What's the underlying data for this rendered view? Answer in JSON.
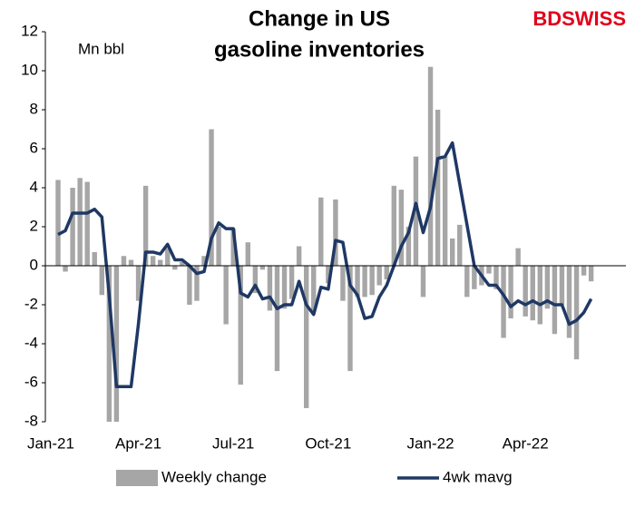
{
  "chart_data": {
    "type": "bar_line",
    "title": [
      "Change in US",
      "gasoline inventories"
    ],
    "unit_label": "Mn bbl",
    "logo": "BDSWISS",
    "categories": [
      "Jan-21",
      null,
      null,
      null,
      null,
      null,
      null,
      null,
      null,
      null,
      null,
      null,
      "Apr-21",
      null,
      null,
      null,
      null,
      null,
      null,
      null,
      null,
      null,
      null,
      null,
      null,
      "Jul-21",
      null,
      null,
      null,
      null,
      null,
      null,
      null,
      null,
      null,
      null,
      null,
      null,
      "Oct-21",
      null,
      null,
      null,
      null,
      null,
      null,
      null,
      null,
      null,
      null,
      null,
      null,
      null,
      "Jan-22",
      null,
      null,
      null,
      null,
      null,
      null,
      null,
      null,
      null,
      null,
      null,
      null,
      "Apr-22",
      null,
      null,
      null,
      null,
      null,
      null,
      null,
      null
    ],
    "series": [
      {
        "name": "Weekly change",
        "kind": "bar",
        "color": "#a6a6a6",
        "values": [
          4.4,
          -0.3,
          4.0,
          4.5,
          4.3,
          0.7,
          -1.5,
          -9.0,
          -9.0,
          0.5,
          0.3,
          -1.8,
          4.1,
          0.5,
          0.3,
          0.9,
          -0.2,
          0.2,
          -2.0,
          -1.8,
          0.5,
          7.0,
          2.0,
          -3.0,
          1.9,
          -6.1,
          1.2,
          -1.4,
          -0.2,
          -2.3,
          -5.4,
          -2.2,
          -1.7,
          1.0,
          -7.3,
          -2.3,
          3.5,
          -0.9,
          3.4,
          -1.8,
          -5.4,
          -1.6,
          -1.6,
          -1.5,
          -1.0,
          -0.7,
          4.1,
          3.9,
          2.0,
          5.6,
          -1.6,
          10.2,
          8.0,
          5.6,
          1.4,
          2.1,
          -1.6,
          -1.2,
          -1.0,
          -0.4,
          -1.2,
          -3.7,
          -2.7,
          0.9,
          -2.6,
          -2.8,
          -3.0,
          -2.2,
          -3.5,
          -2.0,
          -3.7,
          -4.8,
          -0.5,
          -0.8
        ]
      },
      {
        "name": "4wk mavg",
        "kind": "line",
        "color": "#1f3864",
        "values": [
          1.6,
          1.8,
          2.7,
          2.7,
          2.7,
          2.9,
          2.5,
          -1.5,
          -6.2,
          -6.2,
          -6.2,
          -3.0,
          0.7,
          0.7,
          0.6,
          1.1,
          0.3,
          0.3,
          0.0,
          -0.4,
          -0.3,
          1.4,
          2.2,
          1.9,
          1.9,
          -1.4,
          -1.6,
          -1.0,
          -1.7,
          -1.6,
          -2.2,
          -2.0,
          -2.0,
          -0.8,
          -2.0,
          -2.5,
          -1.1,
          -1.2,
          1.3,
          1.2,
          -1.0,
          -1.5,
          -2.7,
          -2.6,
          -1.6,
          -1.0,
          0.0,
          1.0,
          1.7,
          3.2,
          1.7,
          3.0,
          5.5,
          5.6,
          6.3,
          4.2,
          2.1,
          0.0,
          -0.5,
          -1.0,
          -1.0,
          -1.5,
          -2.1,
          -1.8,
          -2.0,
          -1.8,
          -2.0,
          -1.8,
          -2.0,
          -2.0,
          -3.0,
          -2.8,
          -2.4,
          -1.7
        ]
      }
    ],
    "ylim": [
      -8,
      12
    ],
    "yticks": [
      -8,
      -6,
      -4,
      -2,
      0,
      2,
      4,
      6,
      8,
      10,
      12
    ]
  }
}
